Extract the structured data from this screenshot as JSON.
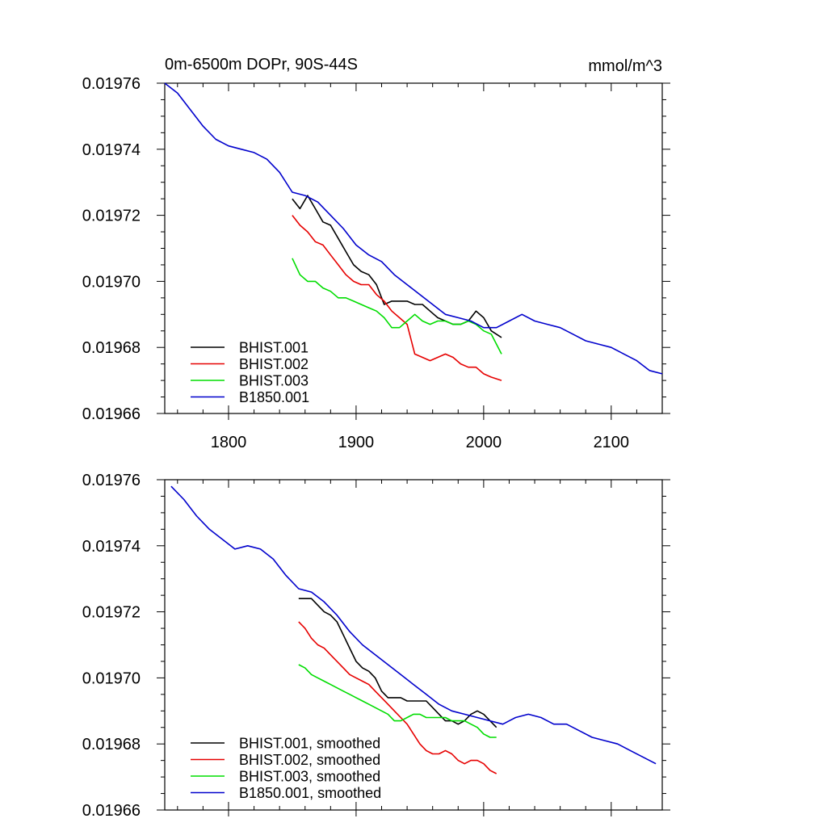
{
  "colors": {
    "BHIST.001": "#000000",
    "BHIST.002": "#e60000",
    "BHIST.003": "#00dd00",
    "B1850.001": "#0000cc"
  },
  "chart_data": [
    {
      "type": "line",
      "title": "0m-6500m DOPr, 90S-44S",
      "units": "mmol/m^3",
      "xlim": [
        1750,
        2140
      ],
      "ylim": [
        0.01966,
        0.01976
      ],
      "yticks": [
        "0.01966",
        "0.01968",
        "0.01970",
        "0.01972",
        "0.01974",
        "0.01976"
      ],
      "xticks": [
        "1800",
        "1900",
        "2000",
        "2100"
      ],
      "grid": false,
      "legend": "bottom-left",
      "series": [
        {
          "name": "BHIST.001",
          "x": [
            1850,
            1856,
            1862,
            1868,
            1874,
            1880,
            1886,
            1892,
            1898,
            1904,
            1910,
            1916,
            1922,
            1928,
            1934,
            1940,
            1946,
            1952,
            1958,
            1964,
            1970,
            1976,
            1982,
            1988,
            1994,
            2000,
            2006,
            2014
          ],
          "y": [
            0.019725,
            0.019722,
            0.019726,
            0.019722,
            0.019718,
            0.019717,
            0.019713,
            0.019709,
            0.019705,
            0.019703,
            0.019702,
            0.019699,
            0.019693,
            0.019694,
            0.019694,
            0.019694,
            0.019693,
            0.019693,
            0.019691,
            0.019689,
            0.019688,
            0.019687,
            0.019687,
            0.019688,
            0.019691,
            0.019689,
            0.019685,
            0.019683
          ]
        },
        {
          "name": "BHIST.002",
          "x": [
            1850,
            1856,
            1862,
            1868,
            1874,
            1880,
            1886,
            1892,
            1898,
            1904,
            1910,
            1916,
            1922,
            1928,
            1934,
            1940,
            1946,
            1952,
            1958,
            1964,
            1970,
            1976,
            1982,
            1988,
            1994,
            2000,
            2006,
            2014
          ],
          "y": [
            0.01972,
            0.019717,
            0.019715,
            0.019712,
            0.019711,
            0.019708,
            0.019705,
            0.019702,
            0.0197,
            0.019699,
            0.019699,
            0.019696,
            0.019694,
            0.019691,
            0.019689,
            0.019687,
            0.019678,
            0.019677,
            0.019676,
            0.019677,
            0.019678,
            0.019677,
            0.019675,
            0.019674,
            0.019674,
            0.019672,
            0.019671,
            0.01967
          ]
        },
        {
          "name": "BHIST.003",
          "x": [
            1850,
            1856,
            1862,
            1868,
            1874,
            1880,
            1886,
            1892,
            1898,
            1904,
            1910,
            1916,
            1922,
            1928,
            1934,
            1940,
            1946,
            1952,
            1958,
            1964,
            1970,
            1976,
            1982,
            1988,
            1994,
            2000,
            2006,
            2014
          ],
          "y": [
            0.019707,
            0.019702,
            0.0197,
            0.0197,
            0.019698,
            0.019697,
            0.019695,
            0.019695,
            0.019694,
            0.019693,
            0.019692,
            0.019691,
            0.019689,
            0.019686,
            0.019686,
            0.019688,
            0.01969,
            0.019688,
            0.019687,
            0.019688,
            0.019688,
            0.019687,
            0.019687,
            0.019688,
            0.019687,
            0.019685,
            0.019684,
            0.019678
          ]
        },
        {
          "name": "B1850.001",
          "x": [
            1750,
            1760,
            1770,
            1780,
            1790,
            1800,
            1810,
            1820,
            1830,
            1840,
            1850,
            1860,
            1870,
            1880,
            1890,
            1900,
            1910,
            1920,
            1930,
            1940,
            1950,
            1960,
            1970,
            1980,
            1990,
            2000,
            2010,
            2020,
            2030,
            2040,
            2050,
            2060,
            2070,
            2080,
            2090,
            2100,
            2110,
            2120,
            2130,
            2140
          ],
          "y": [
            0.01976,
            0.019757,
            0.019752,
            0.019747,
            0.019743,
            0.019741,
            0.01974,
            0.019739,
            0.019737,
            0.019733,
            0.019727,
            0.019726,
            0.019724,
            0.01972,
            0.019716,
            0.019711,
            0.019708,
            0.019706,
            0.019702,
            0.019699,
            0.019696,
            0.019693,
            0.01969,
            0.019689,
            0.019688,
            0.019686,
            0.019686,
            0.019688,
            0.01969,
            0.019688,
            0.019687,
            0.019686,
            0.019684,
            0.019682,
            0.019681,
            0.01968,
            0.019678,
            0.019676,
            0.019673,
            0.019672
          ]
        }
      ]
    },
    {
      "type": "line",
      "title": "",
      "xlim": [
        1750,
        2140
      ],
      "ylim": [
        0.01966,
        0.01976
      ],
      "yticks": [
        "0.01966",
        "0.01968",
        "0.01970",
        "0.01972",
        "0.01974",
        "0.01976"
      ],
      "xticks": [],
      "grid": false,
      "legend": "bottom-left",
      "series": [
        {
          "name": "BHIST.001, smoothed",
          "x": [
            1855,
            1860,
            1865,
            1870,
            1875,
            1880,
            1885,
            1890,
            1895,
            1900,
            1905,
            1910,
            1915,
            1920,
            1925,
            1930,
            1935,
            1940,
            1945,
            1950,
            1955,
            1960,
            1965,
            1970,
            1975,
            1980,
            1985,
            1990,
            1995,
            2000,
            2005,
            2010
          ],
          "y": [
            0.019724,
            0.019724,
            0.019724,
            0.019722,
            0.01972,
            0.019719,
            0.019717,
            0.019713,
            0.019709,
            0.019705,
            0.019703,
            0.019702,
            0.0197,
            0.019696,
            0.019694,
            0.019694,
            0.019694,
            0.019693,
            0.019693,
            0.019693,
            0.019693,
            0.019691,
            0.019689,
            0.019687,
            0.019687,
            0.019686,
            0.019687,
            0.019689,
            0.01969,
            0.019689,
            0.019687,
            0.019685
          ]
        },
        {
          "name": "BHIST.002, smoothed",
          "x": [
            1855,
            1860,
            1865,
            1870,
            1875,
            1880,
            1885,
            1890,
            1895,
            1900,
            1905,
            1910,
            1915,
            1920,
            1925,
            1930,
            1935,
            1940,
            1945,
            1950,
            1955,
            1960,
            1965,
            1970,
            1975,
            1980,
            1985,
            1990,
            1995,
            2000,
            2005,
            2010
          ],
          "y": [
            0.019717,
            0.019715,
            0.019712,
            0.01971,
            0.019709,
            0.019707,
            0.019705,
            0.019703,
            0.019701,
            0.0197,
            0.019699,
            0.019698,
            0.019696,
            0.019694,
            0.019692,
            0.01969,
            0.019688,
            0.019686,
            0.019683,
            0.01968,
            0.019678,
            0.019677,
            0.019677,
            0.019678,
            0.019677,
            0.019675,
            0.019674,
            0.019675,
            0.019675,
            0.019674,
            0.019672,
            0.019671
          ]
        },
        {
          "name": "BHIST.003, smoothed",
          "x": [
            1855,
            1860,
            1865,
            1870,
            1875,
            1880,
            1885,
            1890,
            1895,
            1900,
            1905,
            1910,
            1915,
            1920,
            1925,
            1930,
            1935,
            1940,
            1945,
            1950,
            1955,
            1960,
            1965,
            1970,
            1975,
            1980,
            1985,
            1990,
            1995,
            2000,
            2005,
            2010
          ],
          "y": [
            0.019704,
            0.019703,
            0.019701,
            0.0197,
            0.019699,
            0.019698,
            0.019697,
            0.019696,
            0.019695,
            0.019694,
            0.019693,
            0.019692,
            0.019691,
            0.01969,
            0.019689,
            0.019687,
            0.019687,
            0.019688,
            0.019689,
            0.019689,
            0.019688,
            0.019688,
            0.019688,
            0.019688,
            0.019687,
            0.019687,
            0.019687,
            0.019686,
            0.019685,
            0.019683,
            0.019682,
            0.019682
          ]
        },
        {
          "name": "B1850.001, smoothed",
          "x": [
            1755,
            1765,
            1775,
            1785,
            1795,
            1805,
            1815,
            1825,
            1835,
            1845,
            1855,
            1865,
            1875,
            1885,
            1895,
            1905,
            1915,
            1925,
            1935,
            1945,
            1955,
            1965,
            1975,
            1985,
            1995,
            2005,
            2015,
            2025,
            2035,
            2045,
            2055,
            2065,
            2075,
            2085,
            2095,
            2105,
            2115,
            2125,
            2135
          ],
          "y": [
            0.019758,
            0.019754,
            0.019749,
            0.019745,
            0.019742,
            0.019739,
            0.01974,
            0.019739,
            0.019736,
            0.019731,
            0.019727,
            0.019726,
            0.019723,
            0.019719,
            0.019714,
            0.01971,
            0.019707,
            0.019704,
            0.019701,
            0.019698,
            0.019695,
            0.019692,
            0.01969,
            0.019689,
            0.019688,
            0.019687,
            0.019686,
            0.019688,
            0.019689,
            0.019688,
            0.019686,
            0.019686,
            0.019684,
            0.019682,
            0.019681,
            0.01968,
            0.019678,
            0.019676,
            0.019674
          ]
        }
      ]
    }
  ]
}
